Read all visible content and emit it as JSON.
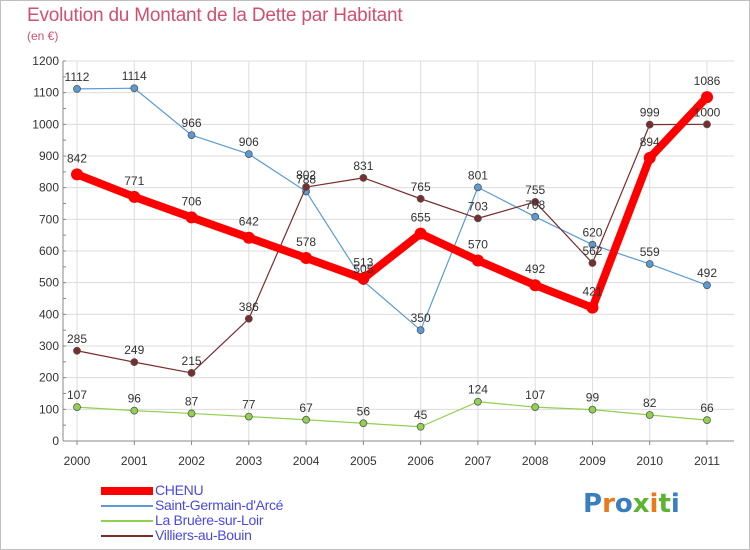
{
  "chart_data": {
    "type": "line",
    "title": "Evolution du Montant de la Dette par Habitant",
    "subtitle": "(en €)",
    "categories": [
      "2000",
      "2001",
      "2002",
      "2003",
      "2004",
      "2005",
      "2006",
      "2007",
      "2008",
      "2009",
      "2010",
      "2011"
    ],
    "ylim": [
      0,
      1200
    ],
    "yticks": [
      0,
      100,
      200,
      300,
      400,
      500,
      600,
      700,
      800,
      900,
      1000,
      1100,
      1200
    ],
    "grid": true,
    "legend_position": "bottom-left",
    "series": [
      {
        "name": "Saint-Germain-d'Arcé",
        "color": "#5b9bd5",
        "values": [
          1112,
          1114,
          966,
          906,
          788,
          505,
          350,
          801,
          708,
          620,
          559,
          492
        ]
      },
      {
        "name": "La Bruère-sur-Loir",
        "color": "#92d050",
        "values": [
          107,
          96,
          87,
          77,
          67,
          56,
          45,
          124,
          107,
          99,
          82,
          66
        ]
      },
      {
        "name": "Villiers-au-Bouin",
        "color": "#7b2c2c",
        "values": [
          285,
          249,
          215,
          386,
          802,
          831,
          765,
          703,
          755,
          562,
          999,
          1000
        ]
      },
      {
        "name": "CHENU",
        "color": "#ff0000",
        "values": [
          842,
          771,
          706,
          642,
          578,
          513,
          655,
          570,
          492,
          421,
          894,
          1086
        ],
        "highlight": true
      }
    ]
  },
  "legend": [
    {
      "label": "CHENU",
      "color": "#ff0000",
      "thick": true
    },
    {
      "label": "Saint-Germain-d'Arcé",
      "color": "#5b9bd5",
      "thick": false
    },
    {
      "label": "La Bruère-sur-Loir",
      "color": "#92d050",
      "thick": false
    },
    {
      "label": "Villiers-au-Bouin",
      "color": "#7b2c2c",
      "thick": false
    }
  ],
  "logo": {
    "text": "Proxiti",
    "letter_colors": [
      "#3a7ec2",
      "#e87a1d",
      "#3a7ec2",
      "#5cb531",
      "#e87a1d",
      "#5cb531",
      "#3a7ec2"
    ]
  }
}
